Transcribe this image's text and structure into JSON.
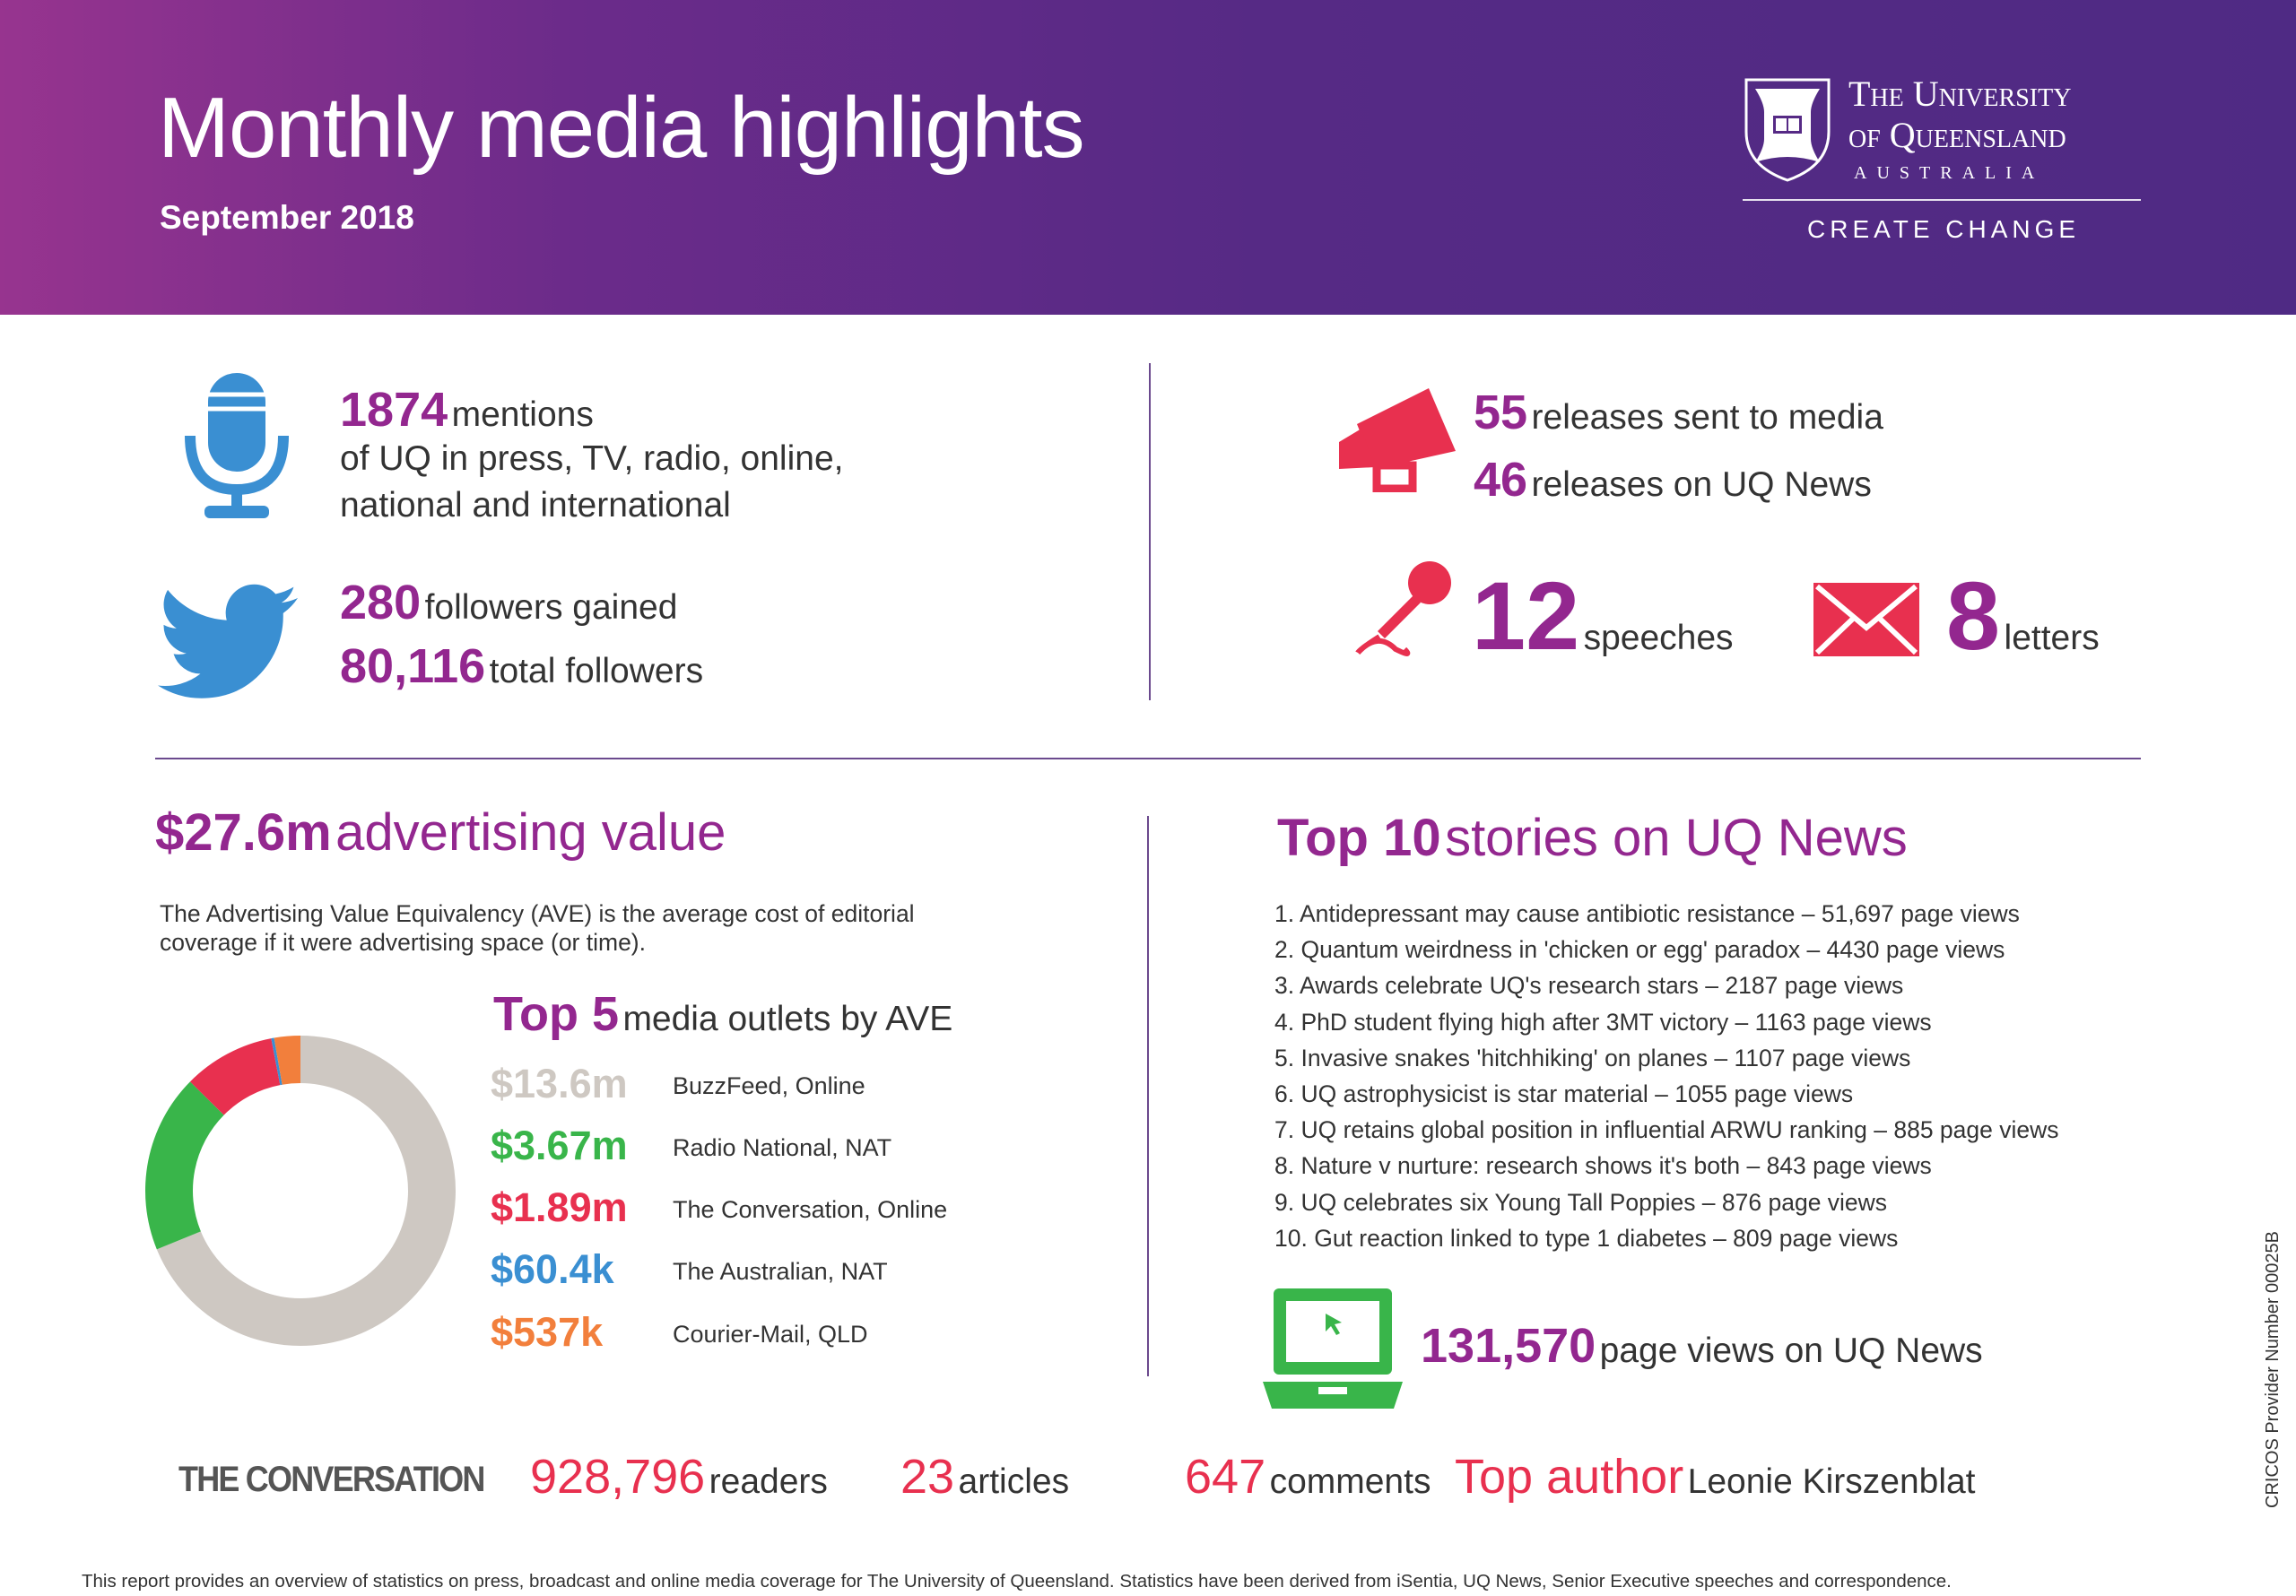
{
  "header": {
    "title": "Monthly media highlights",
    "subtitle": "September 2018",
    "logo": {
      "line1": "The University",
      "line2": "of Queensland",
      "line3": "AUSTRALIA",
      "tagline": "CREATE CHANGE"
    }
  },
  "mentions": {
    "count": "1874",
    "label": "mentions",
    "line2": "of UQ in press, TV, radio, online,",
    "line3": "national and international",
    "icon": "microphone-icon"
  },
  "twitter": {
    "gained": "280",
    "gained_label": "followers gained",
    "total": "80,116",
    "total_label": "total followers",
    "icon": "twitter-bird-icon"
  },
  "releases": {
    "sent": "55",
    "sent_label": "releases sent to media",
    "news": "46",
    "news_label": "releases on UQ News",
    "icon": "megaphone-icon"
  },
  "speeches": {
    "count": "12",
    "label": "speeches",
    "icon": "handheld-microphone-icon"
  },
  "letters": {
    "count": "8",
    "label": "letters",
    "icon": "envelope-icon"
  },
  "advertising": {
    "value": "$27.6m",
    "label": "advertising value",
    "desc1": "The Advertising Value Equivalency (AVE) is the average cost of editorial",
    "desc2": "coverage if it were advertising space (or time)."
  },
  "top5": {
    "prefix": "Top 5",
    "title": "media outlets by AVE"
  },
  "chart_data": {
    "type": "pie",
    "style": "donut",
    "categories": [
      "BuzzFeed, Online",
      "Radio National, NAT",
      "The Conversation, Online",
      "The Australian, NAT",
      "Courier-Mail, QLD"
    ],
    "labels": [
      "$13.6m",
      "$3.67m",
      "$1.89m",
      "$60.4k",
      "$537k"
    ],
    "values": [
      13.6,
      3.67,
      1.89,
      0.0604,
      0.537
    ],
    "unit": "$m",
    "colors": [
      "#cec8c2",
      "#39b54a",
      "#e8304f",
      "#3a8fd2",
      "#f27f3c"
    ]
  },
  "top10": {
    "prefix": "Top 10",
    "title": "stories on UQ News",
    "stories": [
      "1. Antidepressant may cause antibiotic resistance – 51,697 page views",
      "2. Quantum weirdness in 'chicken or egg' paradox – 4430 page views",
      "3. Awards celebrate UQ's research stars – 2187 page views",
      "4. PhD student flying high after 3MT victory – 1163 page views",
      "5. Invasive snakes 'hitchhiking' on planes – 1107 page views",
      "6. UQ astrophysicist is star material – 1055 page views",
      "7. UQ retains global position in influential ARWU ranking – 885 page views",
      "8. Nature v nurture: research shows it's both – 843 page views",
      "9. UQ celebrates six Young Tall Poppies – 876 page views",
      "10. Gut reaction linked to type 1 diabetes – 809 page views"
    ]
  },
  "pageviews": {
    "count": "131,570",
    "label": "page views on UQ News",
    "icon": "laptop-icon"
  },
  "conversation": {
    "logo": "THE CONVERSATION",
    "readers": "928,796",
    "readers_label": "readers",
    "articles": "23",
    "articles_label": "articles",
    "comments": "647",
    "comments_label": "comments",
    "author_prefix": "Top author",
    "author": "Leonie Kirszenblat"
  },
  "footer": "This report provides an overview of statistics on press, broadcast and online media coverage for The University of Queensland. Statistics have been derived from iSentia, UQ News, Senior Executive speeches and correspondence.",
  "cricos": "CRICOS Provider Number 00025B",
  "colors": {
    "purple": "#93278f",
    "red": "#e8304f",
    "green": "#39b54a",
    "blue": "#3a8fd2",
    "orange": "#f27f3c",
    "header_start": "#97348f",
    "header_end": "#4f2a84"
  }
}
